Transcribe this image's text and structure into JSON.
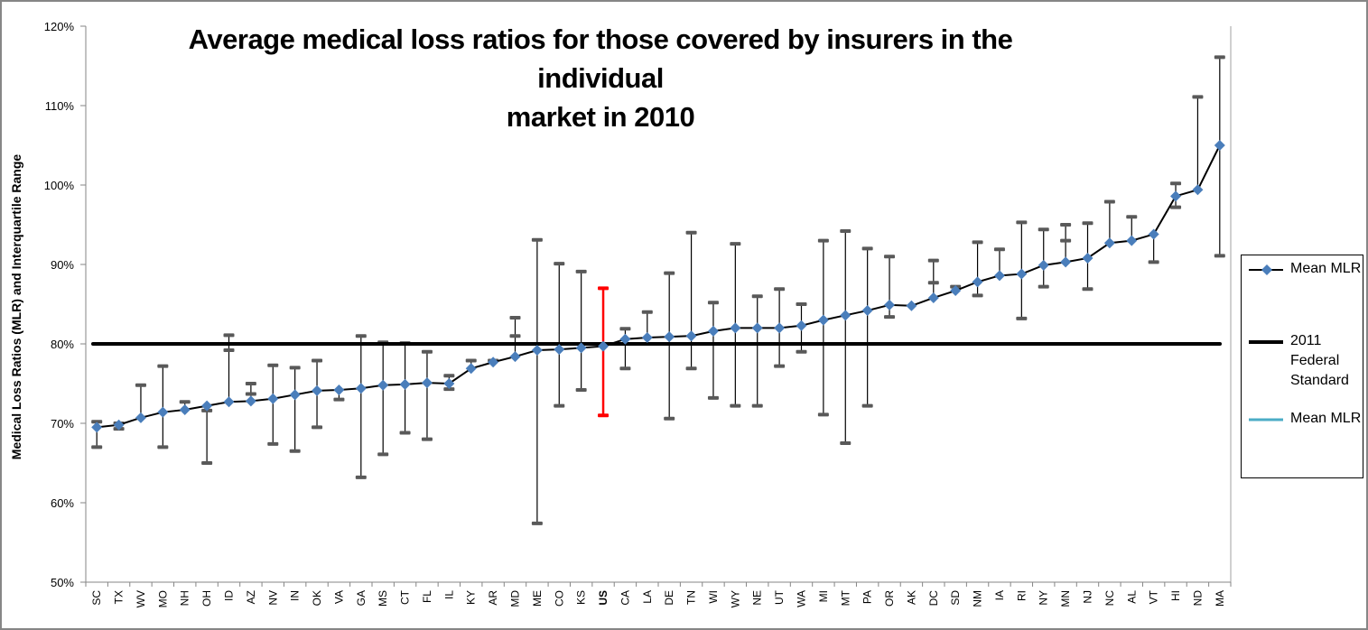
{
  "chart_data": {
    "type": "line",
    "title": "Average medical loss ratios for those covered by insurers in the individual market in 2010",
    "title_lines": [
      "Average medical loss ratios for those covered by insurers in the individual",
      "market in 2010"
    ],
    "xlabel": "",
    "ylabel": "Medical Loss Ratios (MLR) and Interquartile Range",
    "ylim": [
      50,
      120
    ],
    "y_ticks": [
      50,
      60,
      70,
      80,
      90,
      100,
      110,
      120
    ],
    "y_tick_labels": [
      "50%",
      "60%",
      "70%",
      "80%",
      "90%",
      "100%",
      "110%",
      "120%"
    ],
    "grid": false,
    "legend_position": "right",
    "highlight_category": "US",
    "highlight_color": "#ff0000",
    "colors": {
      "mean_marker": "#4a7ebb",
      "mean_line": "#000000",
      "standard_line": "#000000",
      "error_bar": "#000000",
      "error_cap": "#595959",
      "legend_third": "#4bacc6"
    },
    "categories": [
      "SC",
      "TX",
      "WV",
      "MO",
      "NH",
      "OH",
      "ID",
      "AZ",
      "NV",
      "IN",
      "OK",
      "VA",
      "GA",
      "MS",
      "CT",
      "FL",
      "IL",
      "KY",
      "AR",
      "MD",
      "ME",
      "CO",
      "KS",
      "US",
      "CA",
      "LA",
      "DE",
      "TN",
      "WI",
      "WY",
      "NE",
      "UT",
      "WA",
      "MI",
      "MT",
      "PA",
      "OR",
      "AK",
      "DC",
      "SD",
      "NM",
      "IA",
      "RI",
      "NY",
      "MN",
      "NJ",
      "NC",
      "AL",
      "VT",
      "HI",
      "ND",
      "MA"
    ],
    "series": [
      {
        "name": "Mean MLR",
        "values": [
          69.5,
          69.8,
          70.7,
          71.4,
          71.7,
          72.2,
          72.7,
          72.8,
          73.1,
          73.6,
          74.1,
          74.2,
          74.4,
          74.8,
          74.9,
          75.1,
          75.0,
          76.9,
          77.7,
          78.4,
          79.2,
          79.3,
          79.5,
          79.7,
          80.6,
          80.8,
          80.9,
          81.0,
          81.6,
          82.0,
          82.0,
          82.0,
          82.3,
          83.0,
          83.6,
          84.2,
          84.9,
          84.8,
          85.8,
          86.7,
          87.8,
          88.6,
          88.8,
          89.9,
          90.3,
          90.8,
          92.7,
          93.0,
          93.8,
          98.6,
          99.4,
          105.0
        ]
      },
      {
        "name": "Interquartile Range (upper)",
        "values": [
          70.2,
          70.0,
          74.8,
          77.2,
          72.7,
          71.6,
          81.1,
          75.0,
          77.3,
          77.0,
          77.9,
          null,
          81.0,
          80.2,
          80.1,
          79.0,
          76.0,
          77.9,
          77.9,
          83.3,
          93.1,
          90.1,
          89.1,
          87.0,
          81.9,
          84.0,
          88.9,
          94.0,
          85.2,
          92.6,
          86.0,
          86.9,
          85.0,
          93.0,
          94.2,
          92.0,
          91.0,
          null,
          90.5,
          87.2,
          92.8,
          91.9,
          95.3,
          94.4,
          95.0,
          95.2,
          97.9,
          96.0,
          null,
          100.2,
          111.1,
          116.1
        ]
      },
      {
        "name": "Interquartile Range (lower)",
        "values": [
          67.0,
          69.3,
          null,
          67.0,
          null,
          65.0,
          79.2,
          73.7,
          67.4,
          66.5,
          69.5,
          73.0,
          63.2,
          66.1,
          68.8,
          68.0,
          74.3,
          null,
          null,
          81.0,
          57.4,
          72.2,
          74.2,
          71.0,
          76.9,
          null,
          70.6,
          76.9,
          73.2,
          72.2,
          72.2,
          77.2,
          79.0,
          71.1,
          67.5,
          72.2,
          83.4,
          null,
          87.7,
          null,
          86.1,
          null,
          83.2,
          87.2,
          93.0,
          86.9,
          null,
          null,
          90.3,
          97.2,
          null,
          91.1
        ]
      },
      {
        "name": "2011 Federal Standard",
        "values": [
          80
        ]
      }
    ],
    "legend": [
      {
        "label": "Mean MLR",
        "style": "line-marker"
      },
      {
        "label": "2011 Federal Standard",
        "style": "thick-line"
      },
      {
        "label": "Mean MLR",
        "style": "teal-line"
      }
    ]
  },
  "legend_labels": {
    "item0": "Mean MLR",
    "item1": "2011 Federal Standard",
    "item2": "Mean MLR"
  }
}
